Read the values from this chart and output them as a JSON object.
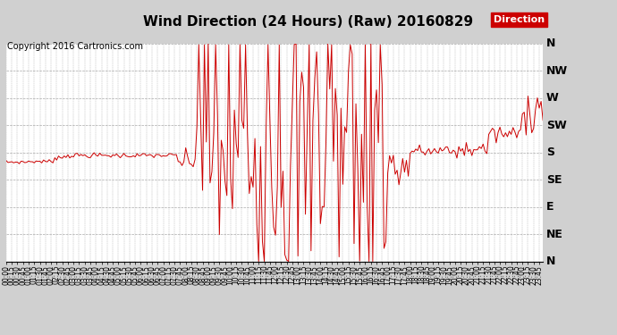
{
  "title": "Wind Direction (24 Hours) (Raw) 20160829",
  "copyright": "Copyright 2016 Cartronics.com",
  "legend_label": "Direction",
  "legend_bg": "#cc0000",
  "legend_text_color": "#ffffff",
  "line_color": "#cc0000",
  "bg_color": "#d0d0d0",
  "plot_bg": "#ffffff",
  "grid_color": "#aaaaaa",
  "ytick_labels": [
    "N",
    "NW",
    "W",
    "SW",
    "S",
    "SE",
    "E",
    "NE",
    "N"
  ],
  "ytick_values": [
    360,
    315,
    270,
    225,
    180,
    135,
    90,
    45,
    0
  ],
  "ylim": [
    0,
    360
  ],
  "title_fontsize": 11,
  "copyright_fontsize": 7,
  "xtick_fontsize": 5.5,
  "ytick_fontsize": 9,
  "line_width": 0.7,
  "total_minutes": 1440
}
